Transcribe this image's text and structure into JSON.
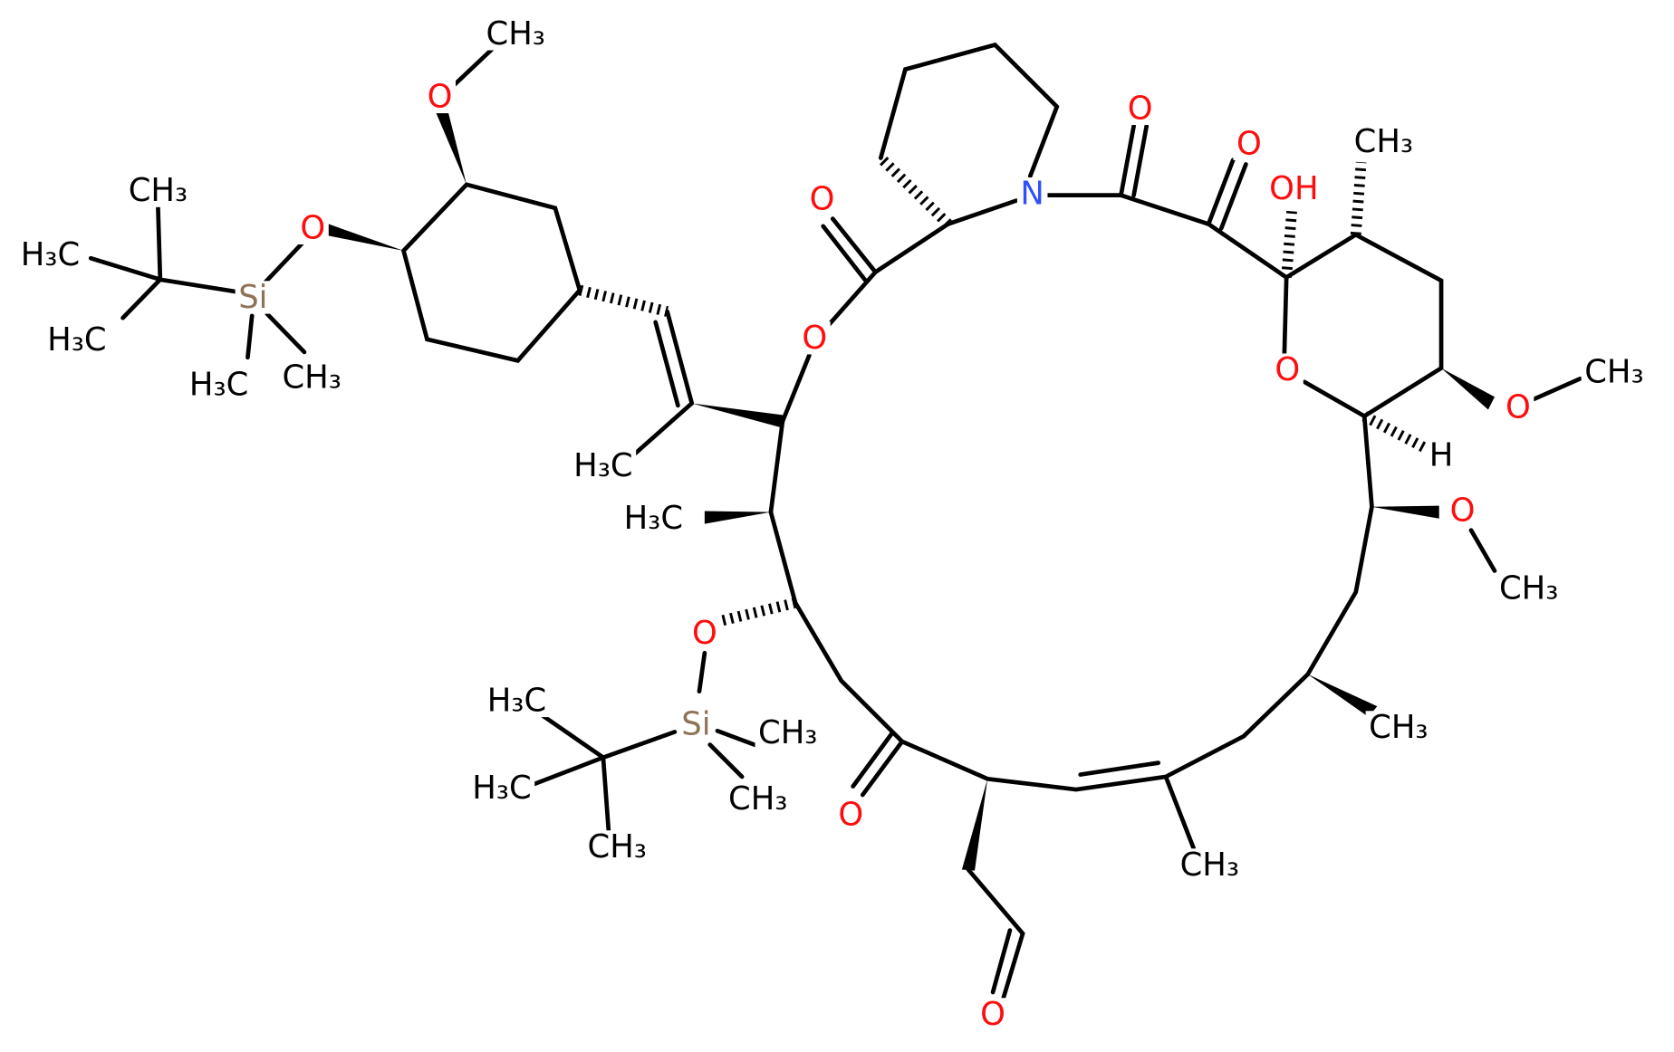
{
  "atoms": [
    "CH₃",
    "O",
    "CH₃",
    "O",
    "H₃C",
    "Si",
    "H₃C",
    "H₃C",
    "CH₃",
    "O",
    "N",
    "O",
    "O",
    "OH",
    "CH₃",
    "O",
    "O",
    "O",
    "CH₃",
    "H",
    "H₃C",
    "H₃C",
    "O",
    "CH₃",
    "O",
    "Si",
    "H₃C",
    "CH₃",
    "H₃C",
    "CH₃",
    "CH₃",
    "O",
    "CH₃",
    "CH₃",
    "O"
  ]
}
